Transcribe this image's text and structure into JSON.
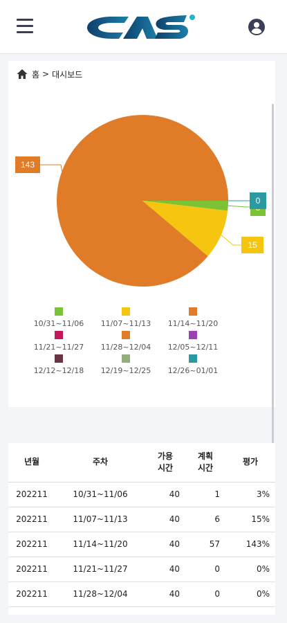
{
  "header": {
    "menu_icon": "hamburger-menu-icon",
    "logo_text": "CAS",
    "user_icon": "user-circle-icon"
  },
  "breadcrumb": {
    "home_icon": "home-icon",
    "home": "홈",
    "sep": ">",
    "current": "대시보드"
  },
  "colors": {
    "orange": "#e07b27",
    "green": "#7bc234",
    "yellow": "#f5c510",
    "crimson": "#c2185b",
    "purple": "#9c3fb0",
    "maroon": "#6b3442",
    "sage": "#93ad7f",
    "teal": "#2a9aa0",
    "navy": "#0f3f6b",
    "cyan": "#25b5c6"
  },
  "chart_data": {
    "type": "pie",
    "categories": [
      "10/31~11/06",
      "11/07~11/13",
      "11/14~11/20",
      "11/21~11/27",
      "11/28~12/04",
      "12/05~12/11",
      "12/12~12/18",
      "12/19~12/25",
      "12/26~01/01"
    ],
    "values": [
      3,
      15,
      143,
      0,
      0,
      0,
      0,
      0,
      0
    ],
    "slice_labels": [
      "3",
      "15",
      "143",
      "",
      "",
      "",
      "",
      "",
      "0"
    ],
    "colors": [
      "#7bc234",
      "#f5c510",
      "#e07b27",
      "#c2185b",
      "#e07b27",
      "#9c3fb0",
      "#6b3442",
      "#93ad7f",
      "#2a9aa0"
    ],
    "legend_position": "bottom"
  },
  "table": {
    "headers": [
      "년월",
      "주차",
      "가용\n시간",
      "계획\n시간",
      "평가"
    ],
    "rows": [
      [
        "202211",
        "10/31~11/06",
        "40",
        "1",
        "3%"
      ],
      [
        "202211",
        "11/07~11/13",
        "40",
        "6",
        "15%"
      ],
      [
        "202211",
        "11/14~11/20",
        "40",
        "57",
        "143%"
      ],
      [
        "202211",
        "11/21~11/27",
        "40",
        "0",
        "0%"
      ],
      [
        "202211",
        "11/28~12/04",
        "40",
        "0",
        "0%"
      ]
    ]
  }
}
